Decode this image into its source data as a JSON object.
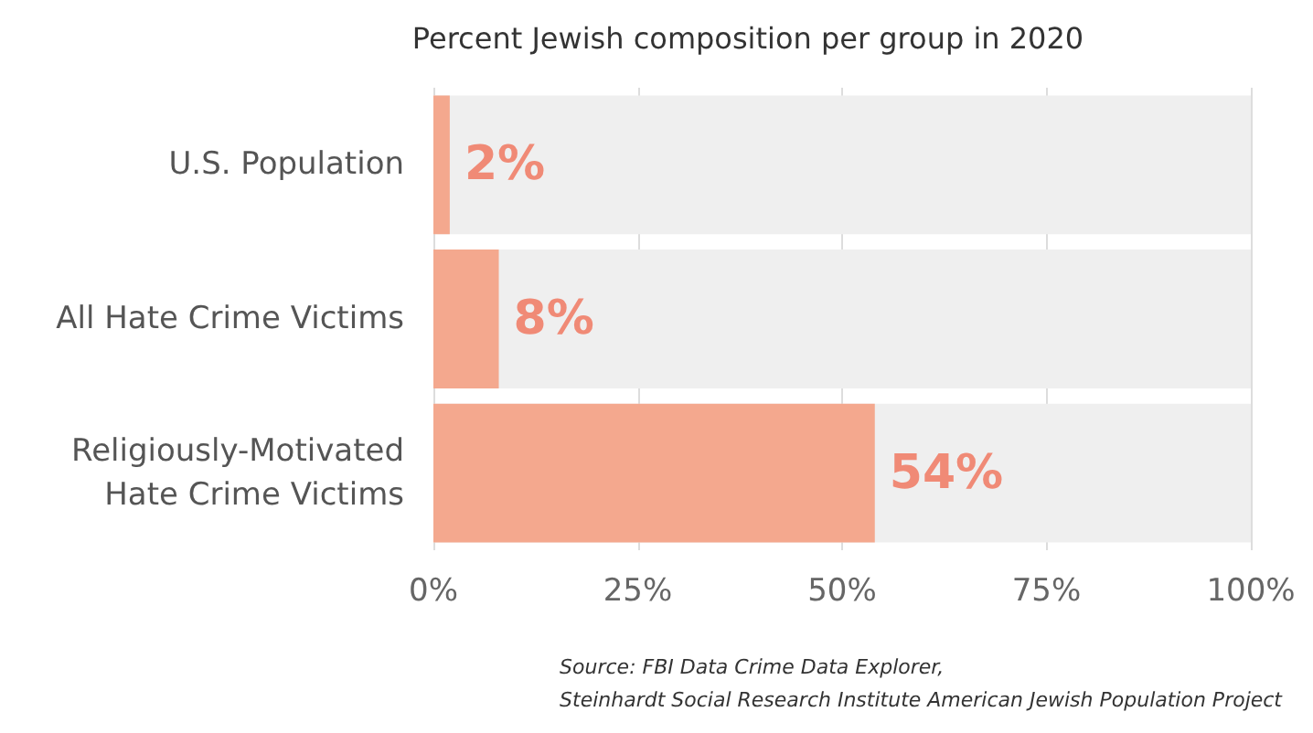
{
  "chart_data": {
    "type": "bar",
    "orientation": "horizontal",
    "subtitle": "Percent Jewish composition per group in 2020",
    "categories": [
      "U.S. Population",
      "All Hate Crime Victims",
      "Religiously-Motivated\nHate Crime Victims"
    ],
    "values": [
      2,
      8,
      54
    ],
    "value_labels": [
      "2%",
      "8%",
      "54%"
    ],
    "color": "#f4a88e",
    "xlim": [
      0,
      100
    ],
    "xticks": [
      {
        "value": 0,
        "label": "0%"
      },
      {
        "value": 25,
        "label": "25%"
      },
      {
        "value": 50,
        "label": "50%"
      },
      {
        "value": 75,
        "label": "75%"
      },
      {
        "value": 100,
        "label": "100%"
      }
    ],
    "grid": "x",
    "annotations": [
      "Source: FBI Data Crime Data Explorer,\nSteinhardt Social Research Institute American Jewish Population Project"
    ]
  }
}
